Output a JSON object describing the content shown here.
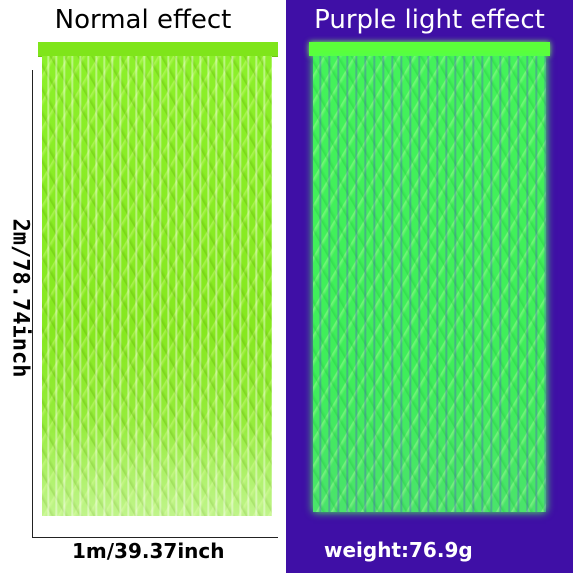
{
  "left_panel": {
    "heading": "Normal effect",
    "height_label": "2m/78.74inch",
    "width_label": "1m/39.37inch"
  },
  "right_panel": {
    "heading": "Purple light effect",
    "weight_label": "weight:76.9g"
  },
  "colors": {
    "left_background": "#ffffff",
    "right_background": "#3f0fa6",
    "curtain_normal": "#86e81f",
    "curtain_glow": "#3fee5a"
  }
}
